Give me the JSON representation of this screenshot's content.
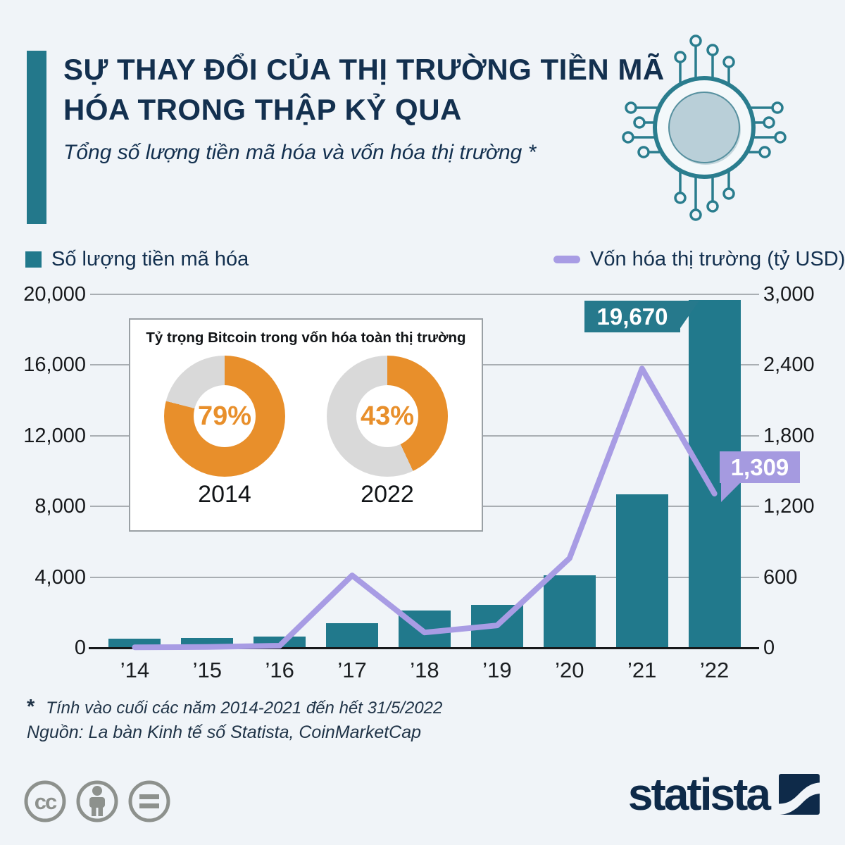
{
  "header": {
    "title_lines": [
      "SỰ THAY ĐỔI CỦA THỊ TRƯỜNG TIỀN MÃ",
      "HÓA TRONG THẬP KỶ QUA"
    ],
    "subtitle": "Tổng số lượng tiền mã hóa và vốn hóa thị trường *"
  },
  "chart_data": [
    {
      "type": "bar",
      "subtype": "combo bar + line, dual axis",
      "title": "Tổng số lượng tiền mã hóa và vốn hóa thị trường",
      "categories": [
        "’14",
        "’15",
        "’16",
        "’17",
        "’18",
        "’19",
        "’20",
        "’21",
        "’22"
      ],
      "series": [
        {
          "name": "Số lượng tiền mã hóa",
          "type": "bar",
          "axis": "left",
          "values": [
            500,
            560,
            650,
            1400,
            2100,
            2450,
            4100,
            8700,
            19670
          ]
        },
        {
          "name": "Vốn hóa thị trường (tỷ USD)",
          "type": "line",
          "axis": "right",
          "values": [
            5,
            7,
            18,
            615,
            130,
            190,
            760,
            2370,
            1309
          ]
        }
      ],
      "left_axis": {
        "ticks": [
          "20,000",
          "16,000",
          "12,000",
          "8,000",
          "4,000",
          "0"
        ],
        "min": 0,
        "max": 20000
      },
      "right_axis": {
        "ticks": [
          "3,000",
          "2,400",
          "1,800",
          "1,200",
          "600",
          "0"
        ],
        "min": 0,
        "max": 3000
      },
      "grid": "horizontal",
      "legend_position": "top",
      "annotations": [
        {
          "target": "bar 2022",
          "text": "19,670"
        },
        {
          "target": "line 2022",
          "text": "1,309"
        }
      ]
    },
    {
      "type": "pie",
      "subtype": "donut pair",
      "title": "Tỷ trọng Bitcoin trong vốn hóa toàn thị trường",
      "donuts": [
        {
          "year": "2014",
          "value_pct": 79,
          "label": "79%"
        },
        {
          "year": "2022",
          "value_pct": 43,
          "label": "43%"
        }
      ]
    }
  ],
  "footnote": {
    "star": "*",
    "text": "Tính vào cuối các năm 2014-2021 đến hết 31/5/2022"
  },
  "source": "Nguồn: La bàn Kinh tế số Statista, CoinMarketCap",
  "branding": {
    "wordmark": "statista"
  },
  "icons": [
    "circuit-coin-icon",
    "cc-icon",
    "cc-attribution-icon",
    "cc-no-derivatives-icon",
    "statista-logo-mark"
  ],
  "colors": {
    "teal": "#21798c",
    "purple_line": "#a89ce4",
    "purple_badge": "#a59ae0",
    "badge_teal": "#26798c",
    "orange": "#e88f2b",
    "donut_gray": "#d9d9d9",
    "navy": "#13304f",
    "background": "#f0f4f8",
    "coin_fill": "#b9cfd8"
  }
}
